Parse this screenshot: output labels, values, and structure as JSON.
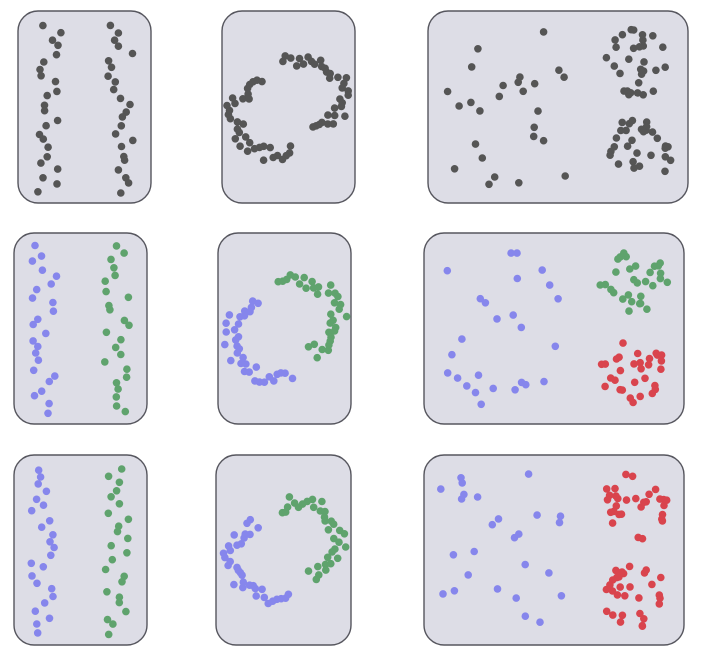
{
  "colors": {
    "background": "#ffffff",
    "panel_fill": "#dddde6",
    "panel_border": "#56565e",
    "unclustered": "#555555",
    "blue": "#8686ec",
    "green": "#5fa36d",
    "red": "#d9444d"
  },
  "rows": [
    {
      "name": "input-data",
      "parallel": [
        "unclustered",
        "unclustered"
      ],
      "moons": [
        "unclustered",
        "unclustered"
      ],
      "blobs": [
        "unclustered",
        "unclustered",
        "unclustered"
      ]
    },
    {
      "name": "correct-clustering",
      "parallel": [
        "blue",
        "green"
      ],
      "moons": [
        "blue",
        "green"
      ],
      "blobs": [
        "blue",
        "green",
        "red"
      ]
    },
    {
      "name": "alternative-clustering",
      "parallel": [
        "blue",
        "green"
      ],
      "moons": [
        "blue",
        "green"
      ],
      "blobs": [
        "blue",
        "red",
        "red"
      ]
    }
  ]
}
